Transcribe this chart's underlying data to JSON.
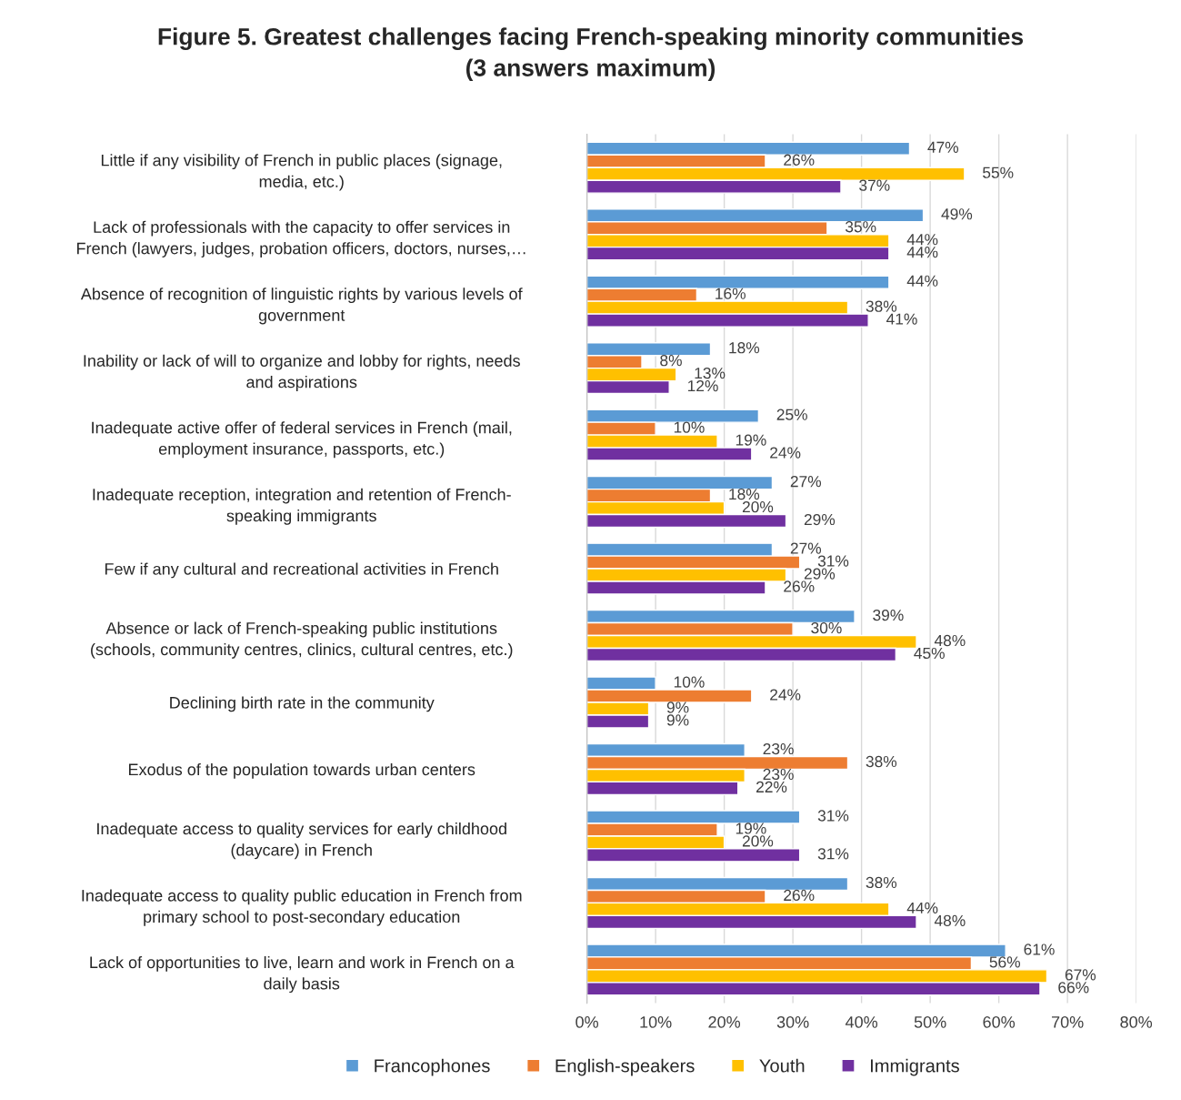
{
  "chart_data": {
    "type": "bar",
    "orientation": "horizontal",
    "title": "Figure 5. Greatest challenges facing French-speaking minority communities\n(3 answers maximum)",
    "categories": [
      "Little if any visibility of French in public places (signage,\nmedia, etc.)",
      "Lack of professionals with the capacity to offer services in\nFrench (lawyers, judges, probation officers, doctors, nurses,…",
      "Absence of recognition of linguistic rights by various levels of\ngovernment",
      "Inability or lack of will to organize and lobby for rights, needs\nand aspirations",
      "Inadequate active offer of federal services in French (mail,\nemployment insurance, passports, etc.)",
      "Inadequate reception, integration and retention of French-\nspeaking immigrants",
      "Few if any cultural and recreational activities in French",
      "Absence or lack of French-speaking public institutions\n(schools, community centres, clinics, cultural centres, etc.)",
      "Declining birth rate in the community",
      "Exodus of the population towards urban centers",
      "Inadequate access to quality services for early childhood\n(daycare) in French",
      "Inadequate access to quality public education in French from\nprimary school to post-secondary education",
      "Lack of opportunities to live, learn and work in French on a\ndaily basis"
    ],
    "series": [
      {
        "name": "Francophones",
        "color": "#5b9bd5",
        "values": [
          47,
          49,
          44,
          18,
          25,
          27,
          27,
          39,
          10,
          23,
          31,
          38,
          61
        ],
        "value_labels": [
          "47%",
          "49%",
          "44%",
          "18%",
          "25%",
          "27%",
          "27%",
          "39%",
          "10%",
          "23%",
          "31%",
          "38%",
          "61%"
        ]
      },
      {
        "name": "English-speakers",
        "color": "#ed7d31",
        "values": [
          26,
          35,
          16,
          8,
          10,
          18,
          31,
          30,
          24,
          38,
          19,
          26,
          56
        ],
        "value_labels": [
          "26%",
          "35%",
          "16%",
          "8%",
          "10%",
          "18%",
          "31%",
          "30%",
          "24%",
          "38%",
          "19%",
          "26%",
          "56%"
        ]
      },
      {
        "name": "Youth",
        "color": "#ffc000",
        "values": [
          55,
          44,
          38,
          13,
          19,
          20,
          29,
          48,
          9,
          23,
          20,
          44,
          67
        ],
        "value_labels": [
          "55%",
          "44%",
          "38%",
          "13%",
          "19%",
          "20%",
          "29%",
          "48%",
          "9%",
          "23%",
          "20%",
          "44%",
          "67%"
        ]
      },
      {
        "name": "Immigrants",
        "color": "#7030a0",
        "values": [
          37,
          44,
          41,
          12,
          24,
          29,
          26,
          45,
          9,
          22,
          31,
          48,
          66
        ],
        "value_labels": [
          "37%",
          "44%",
          "41%",
          "12%",
          "24%",
          "29%",
          "26%",
          "45%",
          "9%",
          "22%",
          "31%",
          "48%",
          "66%"
        ]
      }
    ],
    "xlim": [
      0,
      80
    ],
    "xticks": [
      {
        "value": 0,
        "label": "0%"
      },
      {
        "value": 10,
        "label": "10%"
      },
      {
        "value": 20,
        "label": "20%"
      },
      {
        "value": 30,
        "label": "30%"
      },
      {
        "value": 40,
        "label": "40%"
      },
      {
        "value": 50,
        "label": "50%"
      },
      {
        "value": 60,
        "label": "60%"
      },
      {
        "value": 70,
        "label": "70%"
      },
      {
        "value": 80,
        "label": "80%"
      }
    ],
    "grid": "x",
    "legend": "bottom"
  }
}
